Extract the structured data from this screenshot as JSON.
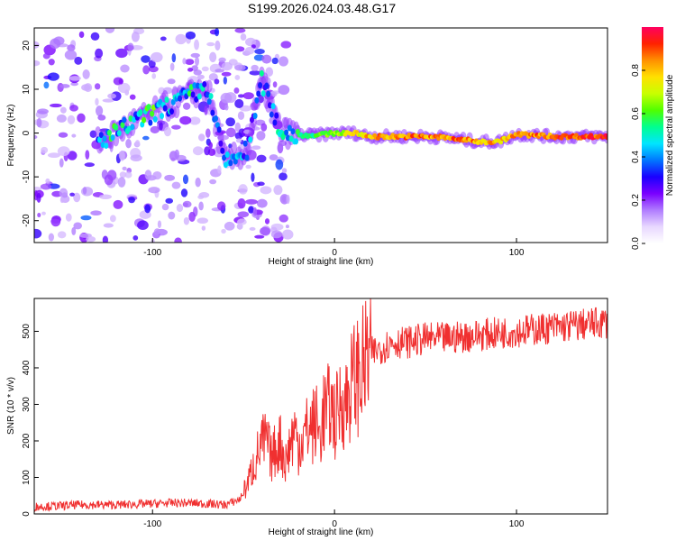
{
  "figure_title": "S199.2026.024.03.48.G17",
  "chart_data": [
    {
      "type": "heatmap",
      "name": "spectrogram",
      "xlabel": "Height of straight line (km)",
      "ylabel": "Frequency (Hz)",
      "xlim": [
        -165,
        150
      ],
      "ylim": [
        -25,
        24
      ],
      "xticks": [
        -100,
        0,
        100
      ],
      "yticks": [
        -20,
        -10,
        0,
        10,
        20
      ],
      "colorbar": {
        "label": "Normalized spectral amplitude",
        "range": [
          0,
          1
        ],
        "ticks": [
          0.0,
          0.2,
          0.4,
          0.6,
          0.8
        ],
        "colors": [
          "#ffffff",
          "#e8d8ff",
          "#b07cff",
          "#7a00ff",
          "#1a00ff",
          "#0077ff",
          "#00e5ff",
          "#00ff90",
          "#50ff00",
          "#c8ff00",
          "#ffe000",
          "#ff9000",
          "#ff2200",
          "#ff0060"
        ]
      },
      "ridge": [
        {
          "x": -130,
          "f": -2.0,
          "a": 0.45
        },
        {
          "x": -120,
          "f": 0.0,
          "a": 0.55
        },
        {
          "x": -110,
          "f": 2.5,
          "a": 0.5
        },
        {
          "x": -100,
          "f": 4.5,
          "a": 0.55
        },
        {
          "x": -90,
          "f": 6.5,
          "a": 0.5
        },
        {
          "x": -80,
          "f": 8.5,
          "a": 0.5
        },
        {
          "x": -70,
          "f": 10.5,
          "a": 0.45
        },
        {
          "x": -60,
          "f": -7.0,
          "a": 0.45
        },
        {
          "x": -48,
          "f": -4.0,
          "a": 0.4
        },
        {
          "x": -40,
          "f": 12.0,
          "a": 0.45
        },
        {
          "x": -30,
          "f": 0.5,
          "a": 0.45
        },
        {
          "x": -20,
          "f": -0.5,
          "a": 0.55
        },
        {
          "x": -10,
          "f": -0.5,
          "a": 0.6
        },
        {
          "x": 0,
          "f": 0.0,
          "a": 0.7
        },
        {
          "x": 10,
          "f": 0.0,
          "a": 0.75
        },
        {
          "x": 20,
          "f": -0.8,
          "a": 0.85
        },
        {
          "x": 30,
          "f": -0.8,
          "a": 0.88
        },
        {
          "x": 40,
          "f": -0.8,
          "a": 0.9
        },
        {
          "x": 50,
          "f": -0.8,
          "a": 0.9
        },
        {
          "x": 60,
          "f": -1.0,
          "a": 0.88
        },
        {
          "x": 70,
          "f": -1.5,
          "a": 0.9
        },
        {
          "x": 80,
          "f": -2.0,
          "a": 0.88
        },
        {
          "x": 90,
          "f": -2.0,
          "a": 0.85
        },
        {
          "x": 100,
          "f": -0.3,
          "a": 0.85
        },
        {
          "x": 110,
          "f": -0.5,
          "a": 0.9
        },
        {
          "x": 120,
          "f": -0.8,
          "a": 0.92
        },
        {
          "x": 130,
          "f": -0.8,
          "a": 0.93
        },
        {
          "x": 140,
          "f": -0.8,
          "a": 0.95
        },
        {
          "x": 150,
          "f": -0.8,
          "a": 0.95
        }
      ]
    },
    {
      "type": "line",
      "name": "snr",
      "xlabel": "Height of straight line (km)",
      "ylabel": "SNR (10 * v/v)",
      "xlim": [
        -165,
        150
      ],
      "ylim": [
        0,
        590
      ],
      "xticks": [
        -100,
        0,
        100
      ],
      "yticks": [
        0,
        100,
        200,
        300,
        400,
        500
      ],
      "color": "#f03030",
      "series": [
        {
          "name": "SNR",
          "x": [
            -165,
            -150,
            -140,
            -120,
            -100,
            -90,
            -80,
            -70,
            -60,
            -52,
            -48,
            -44,
            -40,
            -37,
            -35,
            -32,
            -30,
            -27,
            -25,
            -22,
            -20,
            -17,
            -15,
            -12,
            -10,
            -8,
            -6,
            -4,
            -2,
            0,
            2,
            4,
            6,
            8,
            10,
            12,
            14,
            16,
            18,
            20,
            24,
            28,
            32,
            40,
            50,
            60,
            70,
            80,
            90,
            100,
            110,
            120,
            130,
            140,
            150
          ],
          "y": [
            20,
            22,
            25,
            25,
            28,
            30,
            30,
            28,
            25,
            40,
            80,
            140,
            190,
            200,
            150,
            180,
            200,
            140,
            180,
            230,
            190,
            210,
            230,
            240,
            250,
            210,
            280,
            280,
            300,
            260,
            280,
            320,
            300,
            340,
            360,
            380,
            380,
            400,
            420,
            440,
            450,
            460,
            470,
            470,
            480,
            480,
            485,
            490,
            495,
            500,
            505,
            510,
            515,
            520,
            525
          ]
        }
      ]
    }
  ]
}
